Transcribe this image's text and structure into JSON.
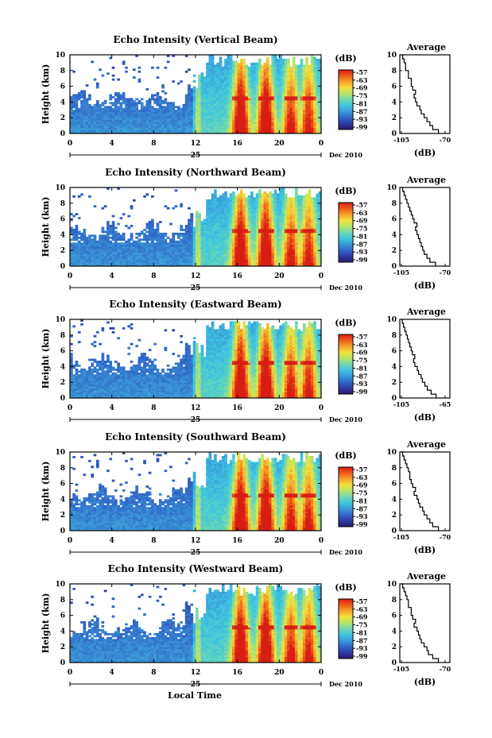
{
  "figure": {
    "xlabel_bottom": "Local Time",
    "date_prefix": "25",
    "date_suffix": "Dec 2010"
  },
  "colorscale": {
    "stops": [
      "#2b1a6b",
      "#2e3aa3",
      "#3266c8",
      "#3a9ad8",
      "#3ec5e0",
      "#6fd8b0",
      "#b7e46a",
      "#f2e23c",
      "#f7a32a",
      "#ef5a1c",
      "#d81e14"
    ],
    "vmin": -99,
    "vmax": -57
  },
  "chart_data": [
    {
      "type": "heatmap",
      "title": "Echo Intensity (Vertical Beam)",
      "ylabel": "Height (km)",
      "xlim": [
        0,
        24
      ],
      "ylim": [
        0,
        10
      ],
      "xticks": [
        "0",
        "4",
        "8",
        "12",
        "16",
        "20",
        "0"
      ],
      "yticks": [
        "0",
        "2",
        "4",
        "6",
        "8",
        "10"
      ],
      "colorbar": {
        "label": "(dB)",
        "ticks": [
          "-57",
          "-63",
          "-69",
          "-75",
          "-81",
          "-87",
          "-93",
          "-99"
        ]
      },
      "avg_profile": {
        "title": "Average",
        "xlabel": "(dB)",
        "xticks": [
          "-105",
          "-70"
        ],
        "xlim": [
          -105,
          -70
        ],
        "heights": [
          0,
          0.5,
          1,
          1.5,
          2,
          2.5,
          3,
          3.5,
          4,
          4.5,
          5,
          5.5,
          6,
          6.5,
          7,
          7.5,
          8,
          8.5,
          9,
          9.5,
          10
        ],
        "values": [
          -78,
          -82,
          -84,
          -86,
          -88,
          -90,
          -91,
          -93,
          -94,
          -95,
          -94,
          -96,
          -97,
          -97,
          -99,
          -99,
          -101,
          -101,
          -102,
          -103,
          -104
        ]
      }
    },
    {
      "type": "heatmap",
      "title": "Echo Intensity (Northward Beam)",
      "ylabel": "Height (km)",
      "xlim": [
        0,
        24
      ],
      "ylim": [
        0,
        10
      ],
      "xticks": [
        "0",
        "4",
        "8",
        "12",
        "16",
        "20",
        "0"
      ],
      "yticks": [
        "0",
        "2",
        "4",
        "6",
        "8",
        "10"
      ],
      "colorbar": {
        "label": "(dB)",
        "ticks": [
          "-57",
          "-63",
          "-69",
          "-75",
          "-81",
          "-87",
          "-93",
          "-99"
        ]
      },
      "avg_profile": {
        "title": "Average",
        "xlabel": "(dB)",
        "xticks": [
          "-105",
          "-70"
        ],
        "xlim": [
          -105,
          -70
        ],
        "heights": [
          0,
          0.5,
          1,
          1.5,
          2,
          2.5,
          3,
          3.5,
          4,
          4.5,
          5,
          5.5,
          6,
          6.5,
          7,
          7.5,
          8,
          8.5,
          9,
          9.5,
          10
        ],
        "values": [
          -80,
          -84,
          -86,
          -88,
          -89,
          -90,
          -91,
          -92,
          -93,
          -94,
          -93,
          -95,
          -96,
          -97,
          -98,
          -99,
          -100,
          -101,
          -102,
          -103,
          -104
        ]
      }
    },
    {
      "type": "heatmap",
      "title": "Echo Intensity (Eastward Beam)",
      "ylabel": "Height (km)",
      "xlim": [
        0,
        24
      ],
      "ylim": [
        0,
        10
      ],
      "xticks": [
        "0",
        "4",
        "8",
        "12",
        "16",
        "20",
        "0"
      ],
      "yticks": [
        "0",
        "2",
        "4",
        "6",
        "8",
        "10"
      ],
      "colorbar": {
        "label": "(dB)",
        "ticks": [
          "-57",
          "-63",
          "-69",
          "-75",
          "-81",
          "-87",
          "-93",
          "-99"
        ]
      },
      "avg_profile": {
        "title": "Average",
        "xlabel": "(dB)",
        "xticks": [
          "-105",
          "-65"
        ],
        "xlim": [
          -105,
          -65
        ],
        "heights": [
          0,
          0.5,
          1,
          1.5,
          2,
          2.5,
          3,
          3.5,
          4,
          4.5,
          5,
          5.5,
          6,
          6.5,
          7,
          7.5,
          8,
          8.5,
          9,
          9.5,
          10
        ],
        "values": [
          -76,
          -80,
          -83,
          -85,
          -87,
          -88,
          -90,
          -91,
          -93,
          -94,
          -93,
          -95,
          -96,
          -97,
          -98,
          -99,
          -100,
          -101,
          -102,
          -103,
          -104
        ]
      }
    },
    {
      "type": "heatmap",
      "title": "Echo Intensity (Southward Beam)",
      "ylabel": "Height (km)",
      "xlim": [
        0,
        24
      ],
      "ylim": [
        0,
        10
      ],
      "xticks": [
        "0",
        "4",
        "8",
        "12",
        "16",
        "20",
        "0"
      ],
      "yticks": [
        "0",
        "2",
        "4",
        "6",
        "8",
        "10"
      ],
      "colorbar": {
        "label": "(dB)",
        "ticks": [
          "-57",
          "-63",
          "-69",
          "-75",
          "-81",
          "-87",
          "-93",
          "-99"
        ]
      },
      "avg_profile": {
        "title": "Average",
        "xlabel": "(dB)",
        "xticks": [
          "-105",
          "-70"
        ],
        "xlim": [
          -105,
          -70
        ],
        "heights": [
          0,
          0.5,
          1,
          1.5,
          2,
          2.5,
          3,
          3.5,
          4,
          4.5,
          5,
          5.5,
          6,
          6.5,
          7,
          7.5,
          8,
          8.5,
          9,
          9.5,
          10
        ],
        "values": [
          -78,
          -82,
          -84,
          -86,
          -88,
          -89,
          -91,
          -92,
          -93,
          -95,
          -94,
          -96,
          -97,
          -98,
          -98,
          -99,
          -100,
          -101,
          -102,
          -103,
          -104
        ]
      }
    },
    {
      "type": "heatmap",
      "title": "Echo Intensity (Westward Beam)",
      "ylabel": "Height (km)",
      "xlim": [
        0,
        24
      ],
      "ylim": [
        0,
        10
      ],
      "xticks": [
        "0",
        "4",
        "8",
        "12",
        "16",
        "20",
        "0"
      ],
      "yticks": [
        "0",
        "2",
        "4",
        "6",
        "8",
        "10"
      ],
      "colorbar": {
        "label": "(dB)",
        "ticks": [
          "-57",
          "-63",
          "-69",
          "-75",
          "-81",
          "-87",
          "-93",
          "-99"
        ]
      },
      "avg_profile": {
        "title": "Average",
        "xlabel": "(dB)",
        "xticks": [
          "-105",
          "-70"
        ],
        "xlim": [
          -105,
          -70
        ],
        "heights": [
          0,
          0.5,
          1,
          1.5,
          2,
          2.5,
          3,
          3.5,
          4,
          4.5,
          5,
          5.5,
          6,
          6.5,
          7,
          7.5,
          8,
          8.5,
          9,
          9.5,
          10
        ],
        "values": [
          -78,
          -82,
          -85,
          -86,
          -88,
          -90,
          -91,
          -92,
          -93,
          -95,
          -94,
          -96,
          -97,
          -97,
          -99,
          -99,
          -100,
          -101,
          -102,
          -103,
          -104
        ]
      }
    }
  ]
}
